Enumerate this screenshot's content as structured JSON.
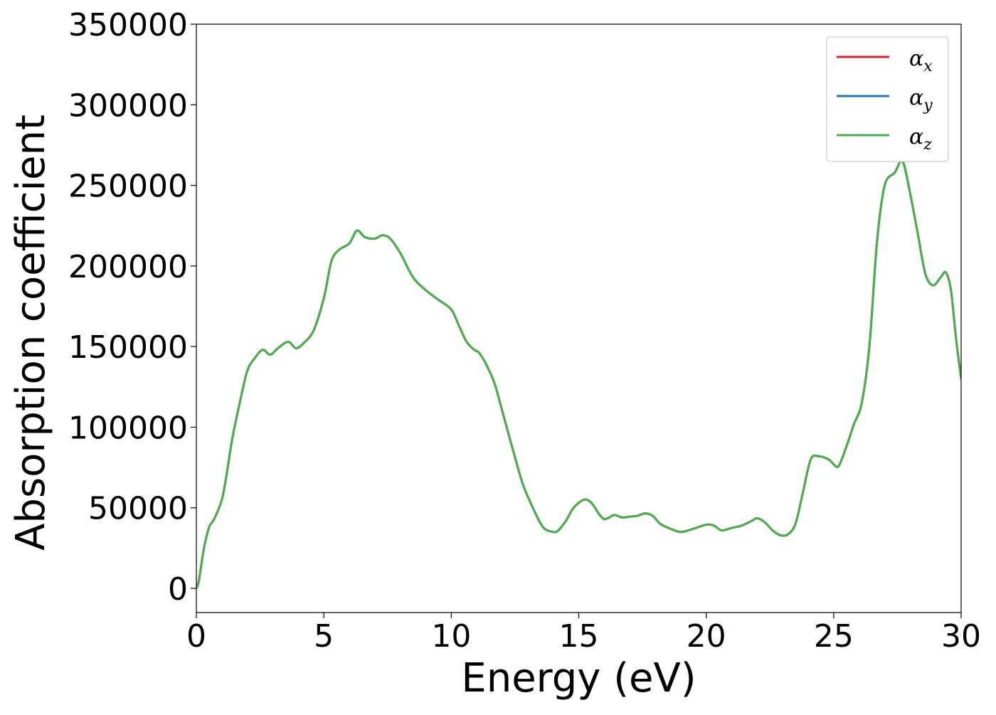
{
  "chart_data": {
    "type": "line",
    "xlabel": "Energy (eV)",
    "ylabel": "Absorption coefficient",
    "xlim": [
      0,
      30
    ],
    "ylim": [
      -15000,
      350000
    ],
    "xticks": [
      0,
      5,
      10,
      15,
      20,
      25,
      30
    ],
    "yticks": [
      0,
      50000,
      100000,
      150000,
      200000,
      250000,
      300000,
      350000
    ],
    "xtick_labels": [
      "0",
      "5",
      "10",
      "15",
      "20",
      "25",
      "30"
    ],
    "ytick_labels": [
      "0",
      "50000",
      "100000",
      "150000",
      "200000",
      "250000",
      "300000",
      "350000"
    ],
    "grid": false,
    "legend_position": "top-right",
    "series": [
      {
        "name": "αx",
        "label_main": "α",
        "label_sub": "x",
        "color": "#d62728"
      },
      {
        "name": "αy",
        "label_main": "α",
        "label_sub": "y",
        "color": "#1f77b4"
      },
      {
        "name": "αz",
        "label_main": "α",
        "label_sub": "z",
        "color": "#4daf4a"
      }
    ],
    "x": [
      0,
      0.1,
      0.3,
      0.5,
      0.7,
      1.0,
      1.2,
      1.4,
      1.7,
      2.0,
      2.3,
      2.6,
      2.9,
      3.2,
      3.6,
      3.9,
      4.2,
      4.6,
      5.0,
      5.3,
      5.6,
      6.0,
      6.3,
      6.6,
      7.0,
      7.3,
      7.6,
      8.0,
      8.5,
      9.0,
      9.5,
      10.0,
      10.3,
      10.6,
      10.9,
      11.1,
      11.4,
      11.7,
      12.0,
      12.4,
      12.8,
      13.2,
      13.6,
      14.0,
      14.2,
      14.5,
      14.8,
      15.2,
      15.5,
      15.8,
      16.0,
      16.2,
      16.4,
      16.7,
      17.0,
      17.3,
      17.6,
      17.9,
      18.2,
      18.6,
      19.0,
      19.5,
      20.0,
      20.3,
      20.6,
      21.0,
      21.4,
      21.8,
      22.0,
      22.3,
      22.6,
      22.9,
      23.2,
      23.5,
      23.8,
      24.1,
      24.4,
      24.8,
      25.0,
      25.2,
      25.5,
      25.8,
      26.1,
      26.4,
      26.7,
      27.0,
      27.4,
      27.7,
      28.0,
      28.3,
      28.6,
      28.9,
      29.2,
      29.4,
      29.6,
      29.8,
      30.0
    ],
    "y": [
      0,
      5000,
      25000,
      38000,
      43000,
      55000,
      72000,
      92000,
      115000,
      135000,
      143000,
      148000,
      145000,
      149000,
      153000,
      149000,
      152000,
      160000,
      180000,
      203000,
      210000,
      214000,
      222000,
      218000,
      217000,
      219000,
      217000,
      208000,
      193000,
      185000,
      179000,
      173000,
      163000,
      153000,
      148000,
      146000,
      138000,
      127000,
      110000,
      87000,
      65000,
      50000,
      38000,
      35000,
      36000,
      42000,
      50000,
      55000,
      53000,
      46000,
      43000,
      44000,
      45500,
      44000,
      44500,
      45000,
      46500,
      45000,
      40000,
      37000,
      35000,
      37000,
      39500,
      39000,
      36000,
      37500,
      39000,
      42000,
      43500,
      41000,
      36000,
      33000,
      33500,
      40000,
      60000,
      80000,
      82000,
      80000,
      77000,
      76000,
      88000,
      102000,
      115000,
      150000,
      215000,
      250000,
      258000,
      265000,
      245000,
      220000,
      195000,
      188000,
      193000,
      196000,
      185000,
      155000,
      130000
    ]
  }
}
